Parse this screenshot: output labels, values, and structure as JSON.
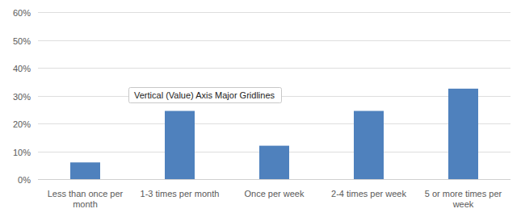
{
  "chart_data": {
    "type": "bar",
    "categories": [
      "Less than once per month",
      "1-3 times per month",
      "Once per week",
      "2-4 times per week",
      "5 or more times per week"
    ],
    "values": [
      6,
      24.5,
      12,
      24.5,
      32.5
    ],
    "color": "#4f81bd",
    "ylim": [
      0,
      60
    ],
    "yticks": [
      {
        "value": 0,
        "label": "0%"
      },
      {
        "value": 10,
        "label": "10%"
      },
      {
        "value": 20,
        "label": "20%"
      },
      {
        "value": 30,
        "label": "30%"
      },
      {
        "value": 40,
        "label": "40%"
      },
      {
        "value": 50,
        "label": "50%"
      },
      {
        "value": 60,
        "label": "60%"
      }
    ],
    "grid": true,
    "annotations": [
      "Vertical (Value) Axis Major Gridlines"
    ]
  }
}
